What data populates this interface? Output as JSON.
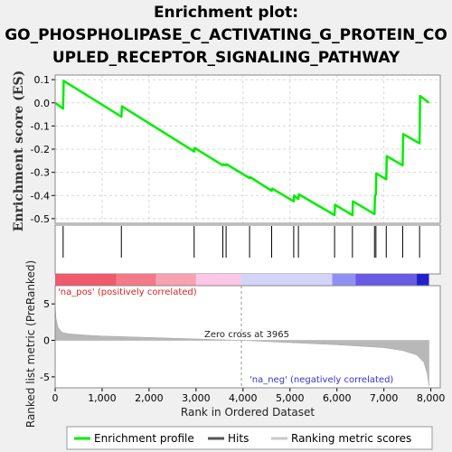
{
  "title_lines": [
    "Enrichment plot:",
    "GO_PHOSPHOLIPASE_C_ACTIVATING_G_PROTEIN_CO",
    "UPLED_RECEPTOR_SIGNALING_PATHWAY"
  ],
  "chart_data": {
    "type": "line",
    "title": "Enrichment plot: GO_PHOSPHOLIPASE_C_ACTIVATING_G_PROTEIN_COUPLED_RECEPTOR_SIGNALING_PATHWAY",
    "top_panel": {
      "ylabel": "Enrichment score (ES)",
      "ylim": [
        -0.52,
        0.12
      ],
      "yticks": [
        0.1,
        0.0,
        -0.1,
        -0.2,
        -0.3,
        -0.4,
        -0.5
      ],
      "ytick_labels": [
        "0.1",
        "0.0",
        "-0.1",
        "-0.2",
        "-0.3",
        "-0.4",
        "-0.5"
      ],
      "grid": true,
      "series": [
        {
          "name": "Enrichment profile",
          "color": "#00ee00",
          "x": [
            0,
            170,
            180,
            1410,
            1420,
            2960,
            2970,
            3570,
            3580,
            3640,
            3650,
            4140,
            4150,
            4610,
            4620,
            5080,
            5090,
            5180,
            5190,
            5950,
            5960,
            6330,
            6340,
            6800,
            6810,
            6830,
            6840,
            7050,
            7060,
            7400,
            7410,
            7760,
            7770,
            7960
          ],
          "y": [
            0.0,
            -0.025,
            0.095,
            -0.06,
            -0.015,
            -0.21,
            -0.195,
            -0.27,
            -0.265,
            -0.27,
            -0.265,
            -0.325,
            -0.32,
            -0.38,
            -0.37,
            -0.425,
            -0.4,
            -0.415,
            -0.395,
            -0.485,
            -0.44,
            -0.485,
            -0.425,
            -0.48,
            -0.4,
            -0.395,
            -0.305,
            -0.33,
            -0.23,
            -0.27,
            -0.135,
            -0.175,
            0.03,
            0.0
          ]
        }
      ]
    },
    "hits": [
      170,
      1410,
      2960,
      3570,
      3640,
      4140,
      4610,
      5080,
      5180,
      5950,
      6330,
      6800,
      6830,
      7050,
      7400,
      7760
    ],
    "ranking_bar": {
      "segments": [
        {
          "from": 0,
          "to": 1300,
          "color": "#f05a6c"
        },
        {
          "from": 1300,
          "to": 2150,
          "color": "#f47a8a"
        },
        {
          "from": 2150,
          "to": 3000,
          "color": "#f8a2b0"
        },
        {
          "from": 3000,
          "to": 3950,
          "color": "#fcc6e6"
        },
        {
          "from": 3950,
          "to": 5900,
          "color": "#d4d4f8"
        },
        {
          "from": 5900,
          "to": 6400,
          "color": "#9090f4"
        },
        {
          "from": 6400,
          "to": 7700,
          "color": "#6a5ae6"
        },
        {
          "from": 7700,
          "to": 7960,
          "color": "#2020cc"
        }
      ]
    },
    "bottom_panel": {
      "ylabel": "Ranked list metric (PreRanked)",
      "xlabel": "Rank in Ordered Dataset",
      "ylim": [
        -6.5,
        7.5
      ],
      "yticks": [
        5,
        0,
        -5
      ],
      "ytick_labels": [
        "5",
        "0",
        "-5"
      ],
      "xlim": [
        0,
        8200
      ],
      "xticks": [
        0,
        1000,
        2000,
        3000,
        4000,
        5000,
        6000,
        7000,
        8000
      ],
      "xtick_labels": [
        "0",
        "1,000",
        "2,000",
        "3,000",
        "4,000",
        "5,000",
        "6,000",
        "7,000",
        "8,000"
      ],
      "metric_profile": {
        "x": [
          0,
          20,
          60,
          150,
          300,
          600,
          1000,
          2000,
          3000,
          3965,
          5000,
          6000,
          7000,
          7400,
          7700,
          7850,
          7920,
          7960
        ],
        "y": [
          5.0,
          3.0,
          1.8,
          1.1,
          0.9,
          0.75,
          0.6,
          0.4,
          0.2,
          0.0,
          -0.3,
          -0.6,
          -1.0,
          -1.4,
          -2.0,
          -3.0,
          -4.5,
          -6.2
        ]
      },
      "zero_cross": 3965,
      "annotations": {
        "zero_cross": "Zero cross at 3965",
        "pos": "'na_pos' (positively correlated)",
        "neg": "'na_neg' (negatively correlated)"
      }
    },
    "legend": {
      "placement": "bottom",
      "items": [
        {
          "label": "Enrichment profile",
          "color": "#00ee00"
        },
        {
          "label": "Hits",
          "color": "#555555"
        },
        {
          "label": "Ranking metric scores",
          "color": "#c8c8c8"
        }
      ]
    }
  }
}
